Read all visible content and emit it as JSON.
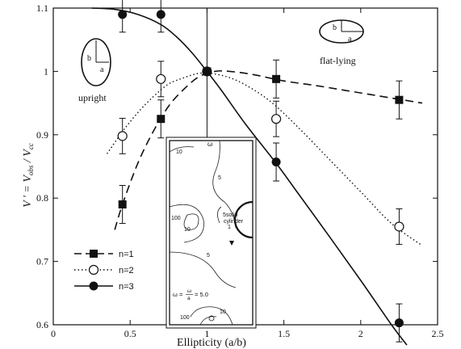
{
  "chart_data": {
    "type": "scatter",
    "xlabel": "Ellipticity (a/b)",
    "ylabel": "V ' = V",
    "ylabel_sub1": "obs",
    "ylabel_mid": " / V",
    "ylabel_sub2": "cc",
    "xlim": [
      0,
      2.5
    ],
    "ylim": [
      0.6,
      1.1
    ],
    "xticks": [
      0,
      0.5,
      1,
      1.5,
      2,
      2.5
    ],
    "xtick_labels": [
      "0",
      "0.5",
      "1",
      "1.5",
      "2",
      "2.5"
    ],
    "yticks": [
      0.6,
      0.7,
      0.8,
      0.9,
      1.0,
      1.1
    ],
    "ytick_labels": [
      "0.6",
      "0.7",
      "0.8",
      "0.9",
      "1",
      "1.1"
    ],
    "grid": false,
    "legend_position": "bottom-left",
    "series": [
      {
        "name": "n=1",
        "marker": "filled-square",
        "line": "dashed",
        "x": [
          0.45,
          0.7,
          1.0,
          1.45,
          2.25
        ],
        "y": [
          0.79,
          0.925,
          1.0,
          0.988,
          0.955
        ],
        "err": [
          0.03,
          0.03,
          0.0,
          0.03,
          0.03
        ],
        "curve_x": [
          0.4,
          0.45,
          0.55,
          0.65,
          0.75,
          0.85,
          0.95,
          1.05,
          1.15,
          1.3,
          1.5,
          1.7,
          1.9,
          2.1,
          2.3,
          2.4
        ],
        "curve_y": [
          0.75,
          0.79,
          0.855,
          0.905,
          0.945,
          0.972,
          0.992,
          1.0,
          1.0,
          0.995,
          0.985,
          0.978,
          0.97,
          0.962,
          0.954,
          0.95
        ]
      },
      {
        "name": "n=2",
        "marker": "open-circle",
        "line": "dotted",
        "x": [
          0.45,
          0.7,
          1.0,
          1.45,
          2.25
        ],
        "y": [
          0.898,
          0.988,
          1.0,
          0.925,
          0.755
        ],
        "err": [
          0.028,
          0.028,
          0.0,
          0.028,
          0.028
        ],
        "curve_x": [
          0.35,
          0.45,
          0.55,
          0.65,
          0.75,
          0.85,
          0.95,
          1.05,
          1.2,
          1.4,
          1.6,
          1.8,
          2.0,
          2.2,
          2.4
        ],
        "curve_y": [
          0.87,
          0.905,
          0.935,
          0.96,
          0.98,
          0.99,
          0.997,
          0.996,
          0.985,
          0.955,
          0.91,
          0.86,
          0.81,
          0.76,
          0.725
        ]
      },
      {
        "name": "n=3",
        "marker": "filled-circle",
        "line": "solid",
        "x": [
          0.45,
          0.7,
          1.0,
          1.45,
          2.25
        ],
        "y": [
          1.09,
          1.09,
          1.0,
          0.857,
          0.603
        ],
        "err": [
          0.028,
          0.028,
          0.0,
          0.03,
          0.03
        ],
        "curve_x": [
          0.25,
          0.4,
          0.55,
          0.7,
          0.8,
          0.9,
          1.0,
          1.1,
          1.25,
          1.45,
          1.6,
          1.8,
          2.0,
          2.2,
          2.3
        ],
        "curve_y": [
          1.1,
          1.098,
          1.09,
          1.074,
          1.055,
          1.03,
          1.0,
          0.968,
          0.917,
          0.855,
          0.805,
          0.738,
          0.67,
          0.6,
          0.568
        ]
      }
    ],
    "annotations": {
      "upright": "upright",
      "flat_lying": "flat-lying",
      "ellipse_b": "b",
      "ellipse_a": "a"
    },
    "inset": {
      "label_omega_top": "ω",
      "contour_labels": [
        "10",
        "5",
        "100",
        "10",
        "5",
        "1",
        "5",
        "100",
        "10"
      ],
      "solid_cylinder": [
        "solid",
        "cylinder"
      ],
      "omega_formula": "ω = ",
      "omega_fraction_num": "ω",
      "omega_fraction_den": "a",
      "omega_value": "= 5.0"
    }
  }
}
